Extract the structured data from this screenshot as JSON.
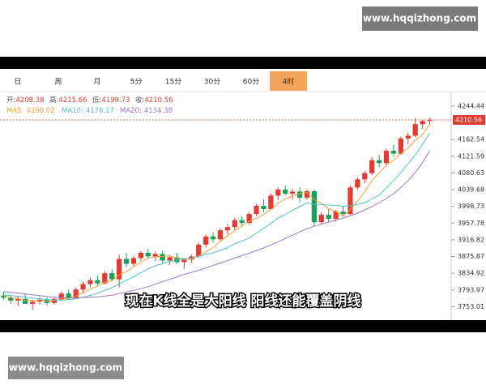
{
  "watermarks": [
    "www.hqqizhong.com",
    "www.hqqizhong.com"
  ],
  "subtitle": "现在K线全是大阳线 阳线还能覆盖阴线",
  "tabs": {
    "items": [
      "日",
      "周",
      "月",
      "5分",
      "15分",
      "30分",
      "60分",
      "4时"
    ],
    "selected": 7,
    "selected_color": "#f3a35a"
  },
  "chart_data": {
    "type": "candlestick",
    "ohlc_labels": [
      "开:",
      "高:",
      "低:",
      "收:"
    ],
    "up_color": "#e03c31",
    "down_color": "#1a9e5a",
    "open": [
      3780,
      3775,
      3768,
      3772,
      3760,
      3765,
      3770,
      3762,
      3772,
      3785,
      3775,
      3795,
      3808,
      3818,
      3810,
      3835,
      3820,
      3870,
      3858,
      3872,
      3885,
      3876,
      3882,
      3866,
      3874,
      3862,
      3868,
      3876,
      3905,
      3925,
      3918,
      3940,
      3948,
      3965,
      3958,
      3980,
      4000,
      3992,
      4025,
      4040,
      4030,
      4035,
      4020,
      4036,
      3960,
      3978,
      3968,
      3986,
      3980,
      4045,
      4065,
      4080,
      4112,
      4105,
      4135,
      4128,
      4165,
      4172,
      4200,
      4208.38
    ],
    "high": [
      3790,
      3782,
      3778,
      3785,
      3770,
      3778,
      3776,
      3775,
      3790,
      3795,
      3800,
      3815,
      3825,
      3830,
      3840,
      3845,
      3880,
      3885,
      3878,
      3890,
      3895,
      3888,
      3890,
      3880,
      3885,
      3872,
      3880,
      3910,
      3930,
      3935,
      3945,
      3955,
      3970,
      3975,
      3985,
      4005,
      4015,
      4030,
      4045,
      4050,
      4042,
      4045,
      4040,
      4040,
      3985,
      3992,
      3990,
      4000,
      4050,
      4070,
      4085,
      4120,
      4125,
      4140,
      4150,
      4170,
      4180,
      4215,
      4210,
      4215.66
    ],
    "low": [
      3770,
      3760,
      3755,
      3765,
      3745,
      3758,
      3755,
      3758,
      3768,
      3770,
      3772,
      3788,
      3800,
      3805,
      3808,
      3815,
      3800,
      3850,
      3852,
      3865,
      3870,
      3865,
      3860,
      3855,
      3858,
      3845,
      3860,
      3872,
      3898,
      3910,
      3915,
      3930,
      3940,
      3950,
      3955,
      3975,
      3985,
      3990,
      4015,
      4025,
      4015,
      4010,
      4015,
      3950,
      3955,
      3960,
      3962,
      3975,
      3978,
      4040,
      4055,
      4075,
      4095,
      4100,
      4120,
      4125,
      4150,
      4168,
      4188,
      4199.73
    ],
    "close": [
      3775,
      3768,
      3772,
      3760,
      3765,
      3770,
      3762,
      3772,
      3785,
      3775,
      3795,
      3808,
      3818,
      3810,
      3835,
      3820,
      3870,
      3858,
      3872,
      3885,
      3876,
      3882,
      3866,
      3874,
      3862,
      3868,
      3876,
      3905,
      3925,
      3918,
      3940,
      3948,
      3965,
      3958,
      3980,
      4000,
      3992,
      4025,
      4040,
      4030,
      4035,
      4020,
      4036,
      3960,
      3978,
      3968,
      3986,
      3980,
      4045,
      4065,
      4080,
      4112,
      4105,
      4135,
      4128,
      4165,
      4172,
      4200,
      4208,
      4210.56
    ],
    "series": [
      {
        "name": "MA5:",
        "color": "#f0a030",
        "values": [
          3778,
          3775,
          3772,
          3768,
          3768,
          3767,
          3766,
          3768,
          3771,
          3773,
          3779,
          3787,
          3796,
          3803,
          3813,
          3817,
          3831,
          3839,
          3851,
          3861,
          3872,
          3875,
          3876,
          3877,
          3872,
          3870,
          3869,
          3877,
          3887,
          3898,
          3913,
          3927,
          3939,
          3951,
          3962,
          3969,
          3979,
          3991,
          4007,
          4017,
          4024,
          4030,
          4033,
          4016,
          4006,
          3993,
          3986,
          3974,
          3991,
          4011,
          4035,
          4062,
          4081,
          4099,
          4112,
          4129,
          4141,
          4160,
          4175,
          4200.02
        ]
      },
      {
        "name": "MA10:",
        "color": "#4fc3c3",
        "values": [
          3782,
          3780,
          3778,
          3776,
          3774,
          3772,
          3770,
          3769,
          3769,
          3770,
          3772,
          3776,
          3781,
          3786,
          3793,
          3799,
          3809,
          3818,
          3826,
          3836,
          3846,
          3853,
          3858,
          3864,
          3867,
          3870,
          3872,
          3876,
          3881,
          3885,
          3891,
          3898,
          3907,
          3914,
          3921,
          3933,
          3945,
          3957,
          3970,
          3979,
          3989,
          3998,
          4007,
          4004,
          4003,
          4002,
          4001,
          3999,
          4000,
          4004,
          4008,
          4017,
          4026,
          4044,
          4062,
          4082,
          4103,
          4125,
          4150,
          4178.17
        ]
      },
      {
        "name": "MA20:",
        "color": "#9b7bc4",
        "values": [
          3790,
          3788,
          3786,
          3784,
          3782,
          3780,
          3778,
          3776,
          3775,
          3774,
          3774,
          3775,
          3776,
          3777,
          3779,
          3781,
          3785,
          3789,
          3793,
          3797,
          3802,
          3808,
          3814,
          3820,
          3826,
          3832,
          3837,
          3842,
          3848,
          3854,
          3860,
          3866,
          3872,
          3878,
          3884,
          3890,
          3897,
          3904,
          3912,
          3920,
          3928,
          3936,
          3944,
          3950,
          3955,
          3960,
          3965,
          3970,
          3976,
          3982,
          3990,
          3998,
          4008,
          4018,
          4030,
          4045,
          4062,
          4082,
          4106,
          4134.38
        ]
      }
    ],
    "ylim": [
      3720,
      4282
    ],
    "yticks": [
      4244.44,
      4162.54,
      4121.59,
      4080.63,
      4039.68,
      3998.73,
      3957.78,
      3916.82,
      3875.87,
      3834.92,
      3793.97,
      3753.01
    ],
    "grid": false
  }
}
